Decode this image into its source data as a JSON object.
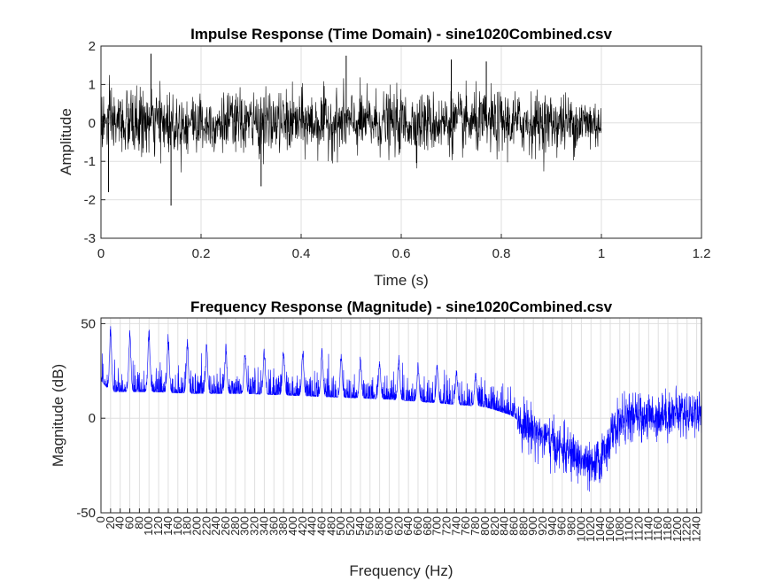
{
  "figure": {
    "background": "#ffffff",
    "grid_color": "#dfdfdf",
    "axis_color": "#262626"
  },
  "chart_data": [
    {
      "type": "line",
      "title": "Impulse Response (Time Domain) - sine1020Combined.csv",
      "xlabel": "Time (s)",
      "ylabel": "Amplitude",
      "xlim": [
        0,
        1.2
      ],
      "ylim": [
        -3,
        2
      ],
      "xticks": [
        0,
        0.2,
        0.4,
        0.6,
        0.8,
        1,
        1.2
      ],
      "xtick_labels": [
        "0",
        "0.2",
        "0.4",
        "0.6",
        "0.8",
        "1",
        "1.2"
      ],
      "yticks": [
        -3,
        -2,
        -1,
        0,
        1,
        2
      ],
      "ytick_labels": [
        "-3",
        "-2",
        "-1",
        "0",
        "1",
        "2"
      ],
      "grid": true,
      "series": [
        {
          "color": "#000000",
          "style": "dense noise, centered at 0",
          "x_range": [
            0,
            1
          ],
          "envelope_x": [
            0,
            0.1,
            0.2,
            0.3,
            0.4,
            0.5,
            0.6,
            0.7,
            0.8,
            0.9,
            1.0
          ],
          "envelope_upper": [
            1.0,
            1.1,
            1.0,
            1.0,
            1.05,
            1.05,
            1.05,
            1.0,
            1.0,
            0.95,
            0.8
          ],
          "envelope_lower": [
            -1.1,
            -1.1,
            -1.0,
            -1.05,
            -1.0,
            -1.0,
            -1.0,
            -1.0,
            -1.05,
            -1.0,
            -0.95
          ],
          "peaks": [
            {
              "x": 0.015,
              "y": -1.8
            },
            {
              "x": 0.1,
              "y": 1.8
            },
            {
              "x": 0.14,
              "y": -2.15
            },
            {
              "x": 0.32,
              "y": -1.65
            },
            {
              "x": 0.49,
              "y": 1.75
            },
            {
              "x": 0.7,
              "y": 1.65
            },
            {
              "x": 0.77,
              "y": 1.6
            }
          ]
        }
      ]
    },
    {
      "type": "line",
      "title": "Frequency Response (Magnitude) - sine1020Combined.csv",
      "xlabel": "Frequency (Hz)",
      "ylabel": "Magnitude (dB)",
      "xlim": [
        0,
        1250
      ],
      "ylim": [
        -50,
        53
      ],
      "xticks": [
        0,
        20,
        40,
        60,
        80,
        100,
        120,
        140,
        160,
        180,
        200,
        220,
        240,
        260,
        280,
        300,
        320,
        340,
        360,
        380,
        400,
        420,
        440,
        460,
        480,
        500,
        520,
        540,
        560,
        580,
        600,
        620,
        640,
        660,
        680,
        700,
        720,
        740,
        760,
        780,
        800,
        820,
        840,
        860,
        880,
        900,
        920,
        940,
        960,
        980,
        1000,
        1020,
        1040,
        1060,
        1080,
        1100,
        1120,
        1140,
        1160,
        1180,
        1200,
        1220,
        1240
      ],
      "xtick_labels": [
        "0",
        "20",
        "40",
        "60",
        "80",
        "100",
        "120",
        "140",
        "160",
        "180",
        "200",
        "220",
        "240",
        "260",
        "280",
        "300",
        "320",
        "340",
        "360",
        "380",
        "400",
        "420",
        "440",
        "460",
        "480",
        "500",
        "520",
        "540",
        "560",
        "580",
        "600",
        "620",
        "640",
        "660",
        "680",
        "700",
        "720",
        "740",
        "760",
        "780",
        "800",
        "820",
        "840",
        "860",
        "880",
        "900",
        "920",
        "940",
        "960",
        "980",
        "1000",
        "1020",
        "1040",
        "1060",
        "1080",
        "1100",
        "1120",
        "1140",
        "1160",
        "1180",
        "1200",
        "1220",
        "1240"
      ],
      "yticks": [
        -50,
        0,
        50
      ],
      "ytick_labels": [
        "-50",
        "0",
        "50"
      ],
      "grid": true,
      "series": [
        {
          "color": "#0000ff",
          "style": "dense noisy magnitude spectrum",
          "trend_x": [
            0,
            20,
            100,
            200,
            300,
            400,
            500,
            600,
            700,
            800,
            850,
            900,
            950,
            1000,
            1020,
            1040,
            1060,
            1080,
            1100,
            1150,
            1200,
            1250
          ],
          "trend_y": [
            20,
            14,
            14,
            13,
            13,
            12,
            11,
            10,
            8,
            6,
            2,
            -6,
            -15,
            -22,
            -27,
            -22,
            -10,
            -2,
            0,
            1,
            3,
            3
          ],
          "peak_freqs": [
            20,
            60,
            100,
            140,
            180,
            220,
            260,
            300,
            340,
            380,
            420,
            460,
            500,
            540,
            580,
            620,
            660,
            700,
            740,
            780
          ],
          "peak_heights": [
            50,
            49,
            48,
            45,
            42,
            41,
            40,
            39,
            38,
            38,
            38,
            38,
            35,
            33,
            32,
            34,
            30,
            30,
            27,
            25
          ]
        }
      ]
    }
  ]
}
